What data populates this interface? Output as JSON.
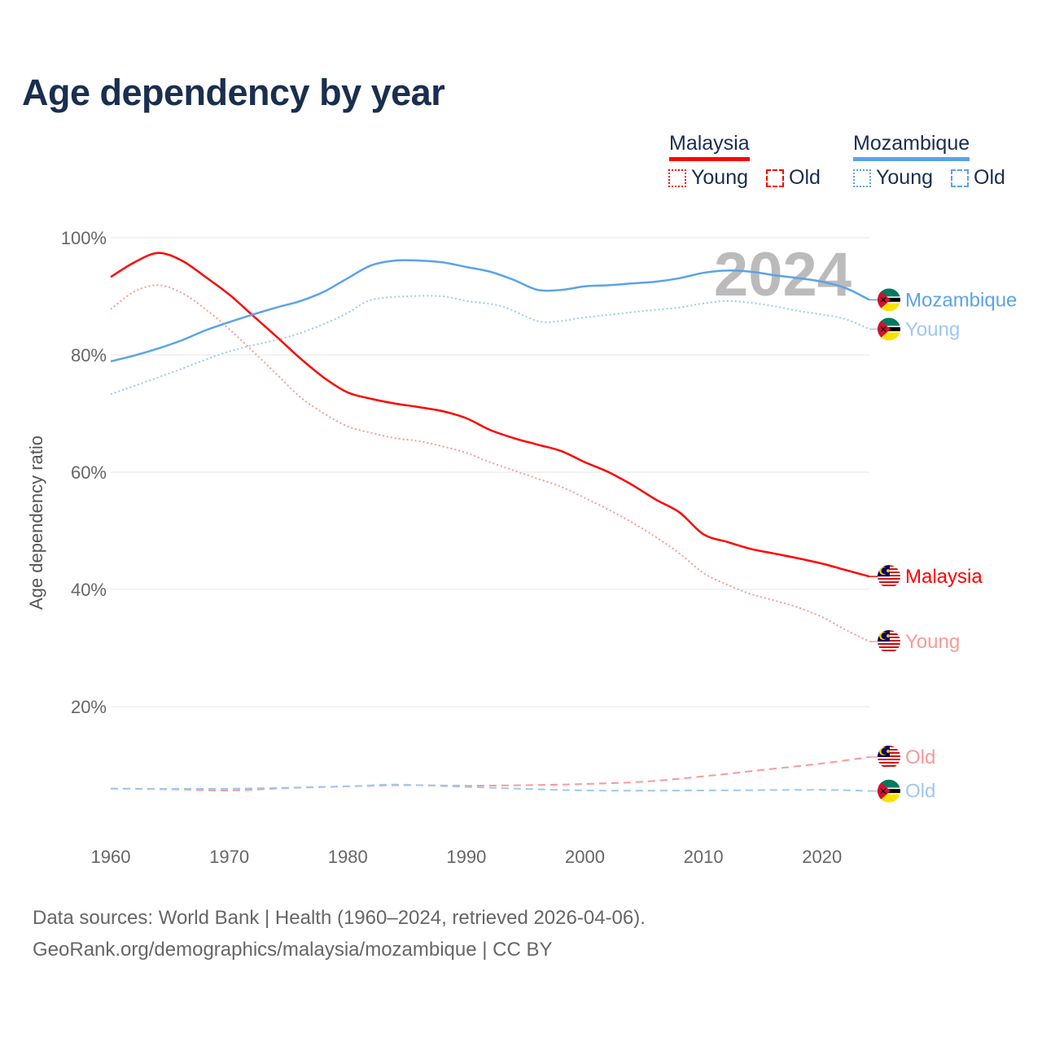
{
  "title": "Age dependency by year",
  "legend": {
    "countries": [
      {
        "name": "Malaysia",
        "color": "#ff0000",
        "items": [
          {
            "label": "Young",
            "style": "dotted"
          },
          {
            "label": "Old",
            "style": "dashed"
          }
        ]
      },
      {
        "name": "Mozambique",
        "color": "#5ba3e8",
        "items": [
          {
            "label": "Young",
            "style": "dotted"
          },
          {
            "label": "Old",
            "style": "dashed"
          }
        ]
      }
    ]
  },
  "year_watermark": "2024",
  "source": {
    "line1": "Data sources: World Bank | Health (1960–2024, retrieved 2026-04-06).",
    "line2": "GeoRank.org/demographics/malaysia/mozambique | CC BY"
  },
  "chart_data": {
    "type": "line",
    "title": "Age dependency by year",
    "xlabel": "",
    "ylabel": "Age dependency ratio",
    "xlim": [
      1960,
      2024
    ],
    "ylim": [
      0,
      100
    ],
    "x_ticks": [
      "1960",
      "1970",
      "1980",
      "1990",
      "2000",
      "2010",
      "2020"
    ],
    "y_ticks": [
      "20%",
      "40%",
      "60%",
      "80%",
      "100%"
    ],
    "y_tick_values": [
      20,
      40,
      60,
      80,
      100
    ],
    "x_tick_values": [
      1960,
      1970,
      1980,
      1990,
      2000,
      2010,
      2020
    ],
    "grid": true,
    "legend_position": "top-right",
    "series": [
      {
        "name": "Malaysia",
        "end_label": "Malaysia",
        "country": "malaysia",
        "style": "solid",
        "color": "#ff0000",
        "points": [
          [
            1960,
            93.3
          ],
          [
            1962,
            95.8
          ],
          [
            1964,
            97.4
          ],
          [
            1966,
            96.1
          ],
          [
            1968,
            93.3
          ],
          [
            1970,
            90.3
          ],
          [
            1972,
            86.7
          ],
          [
            1974,
            83.1
          ],
          [
            1976,
            79.4
          ],
          [
            1978,
            76.1
          ],
          [
            1980,
            73.6
          ],
          [
            1982,
            72.5
          ],
          [
            1984,
            71.7
          ],
          [
            1986,
            71.1
          ],
          [
            1988,
            70.4
          ],
          [
            1990,
            69.2
          ],
          [
            1992,
            67.2
          ],
          [
            1994,
            65.8
          ],
          [
            1996,
            64.7
          ],
          [
            1998,
            63.6
          ],
          [
            2000,
            61.7
          ],
          [
            2002,
            60.0
          ],
          [
            2004,
            57.8
          ],
          [
            2006,
            55.3
          ],
          [
            2008,
            53.1
          ],
          [
            2010,
            49.4
          ],
          [
            2012,
            48.1
          ],
          [
            2014,
            46.9
          ],
          [
            2016,
            46.1
          ],
          [
            2018,
            45.3
          ],
          [
            2020,
            44.4
          ],
          [
            2022,
            43.3
          ],
          [
            2024,
            42.2
          ]
        ]
      },
      {
        "name": "Malaysia Young",
        "end_label": "Young",
        "country": "malaysia",
        "style": "dotted",
        "color": "#f99a9a",
        "points": [
          [
            1960,
            87.8
          ],
          [
            1962,
            90.8
          ],
          [
            1964,
            91.9
          ],
          [
            1966,
            90.6
          ],
          [
            1968,
            87.8
          ],
          [
            1970,
            84.4
          ],
          [
            1972,
            80.6
          ],
          [
            1974,
            76.7
          ],
          [
            1976,
            72.8
          ],
          [
            1978,
            70.0
          ],
          [
            1980,
            67.8
          ],
          [
            1982,
            66.7
          ],
          [
            1984,
            65.8
          ],
          [
            1986,
            65.3
          ],
          [
            1988,
            64.4
          ],
          [
            1990,
            63.3
          ],
          [
            1992,
            61.7
          ],
          [
            1994,
            60.3
          ],
          [
            1996,
            58.9
          ],
          [
            1998,
            57.5
          ],
          [
            2000,
            55.6
          ],
          [
            2002,
            53.6
          ],
          [
            2004,
            51.4
          ],
          [
            2006,
            48.9
          ],
          [
            2008,
            46.1
          ],
          [
            2010,
            42.8
          ],
          [
            2012,
            40.8
          ],
          [
            2014,
            39.2
          ],
          [
            2016,
            38.1
          ],
          [
            2018,
            36.9
          ],
          [
            2020,
            35.3
          ],
          [
            2022,
            33.1
          ],
          [
            2024,
            31.1
          ]
        ]
      },
      {
        "name": "Malaysia Old",
        "end_label": "Old",
        "country": "malaysia",
        "style": "dashed",
        "color": "#f99a9a",
        "points": [
          [
            1960,
            6.0
          ],
          [
            1965,
            5.9
          ],
          [
            1970,
            5.7
          ],
          [
            1975,
            6.1
          ],
          [
            1980,
            6.4
          ],
          [
            1985,
            6.6
          ],
          [
            1990,
            6.5
          ],
          [
            1995,
            6.6
          ],
          [
            2000,
            6.8
          ],
          [
            2005,
            7.2
          ],
          [
            2010,
            8.1
          ],
          [
            2015,
            9.2
          ],
          [
            2020,
            10.3
          ],
          [
            2024,
            11.4
          ]
        ]
      },
      {
        "name": "Mozambique",
        "end_label": "Mozambique",
        "country": "mozambique",
        "style": "solid",
        "color": "#5ba3e8",
        "points": [
          [
            1960,
            78.9
          ],
          [
            1962,
            79.9
          ],
          [
            1964,
            81.1
          ],
          [
            1966,
            82.5
          ],
          [
            1968,
            84.2
          ],
          [
            1970,
            85.6
          ],
          [
            1972,
            86.9
          ],
          [
            1974,
            88.1
          ],
          [
            1976,
            89.2
          ],
          [
            1978,
            90.8
          ],
          [
            1980,
            93.1
          ],
          [
            1982,
            95.3
          ],
          [
            1984,
            96.1
          ],
          [
            1986,
            96.1
          ],
          [
            1988,
            95.8
          ],
          [
            1990,
            95.0
          ],
          [
            1992,
            94.2
          ],
          [
            1994,
            92.8
          ],
          [
            1996,
            91.1
          ],
          [
            1998,
            91.1
          ],
          [
            2000,
            91.7
          ],
          [
            2002,
            91.9
          ],
          [
            2004,
            92.2
          ],
          [
            2006,
            92.5
          ],
          [
            2008,
            93.1
          ],
          [
            2010,
            94.0
          ],
          [
            2012,
            94.4
          ],
          [
            2014,
            94.2
          ],
          [
            2016,
            93.6
          ],
          [
            2018,
            93.1
          ],
          [
            2020,
            92.5
          ],
          [
            2022,
            91.4
          ],
          [
            2024,
            89.4
          ]
        ]
      },
      {
        "name": "Mozambique Young",
        "end_label": "Young",
        "country": "mozambique",
        "style": "dotted",
        "color": "#9fc8f0",
        "points": [
          [
            1960,
            73.3
          ],
          [
            1965,
            76.9
          ],
          [
            1970,
            80.6
          ],
          [
            1975,
            83.1
          ],
          [
            1978,
            85.3
          ],
          [
            1980,
            87.2
          ],
          [
            1982,
            89.4
          ],
          [
            1985,
            90.0
          ],
          [
            1988,
            90.0
          ],
          [
            1990,
            89.2
          ],
          [
            1993,
            88.3
          ],
          [
            1996,
            85.8
          ],
          [
            1998,
            85.8
          ],
          [
            2000,
            86.4
          ],
          [
            2005,
            87.5
          ],
          [
            2008,
            88.1
          ],
          [
            2010,
            88.8
          ],
          [
            2012,
            89.2
          ],
          [
            2014,
            88.9
          ],
          [
            2016,
            88.3
          ],
          [
            2018,
            87.5
          ],
          [
            2020,
            86.9
          ],
          [
            2022,
            86.1
          ],
          [
            2024,
            84.4
          ]
        ]
      },
      {
        "name": "Mozambique Old",
        "end_label": "Old",
        "country": "mozambique",
        "style": "dashed",
        "color": "#9fc8f0",
        "points": [
          [
            1960,
            6.0
          ],
          [
            1970,
            6.0
          ],
          [
            1980,
            6.4
          ],
          [
            1984,
            6.7
          ],
          [
            1990,
            6.3
          ],
          [
            2000,
            5.7
          ],
          [
            2010,
            5.7
          ],
          [
            2020,
            5.8
          ],
          [
            2024,
            5.6
          ]
        ]
      }
    ]
  }
}
